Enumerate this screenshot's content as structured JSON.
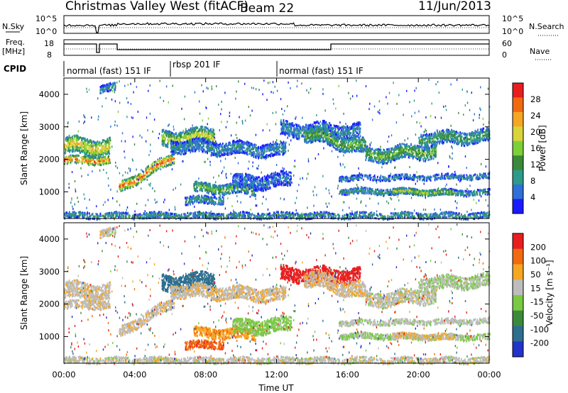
{
  "header": {
    "title": "Christmas Valley West (fitACF)",
    "beam": "Beam 22",
    "date": "11/Jun/2013"
  },
  "summary_panels": {
    "nsky": {
      "left_label": "N.Sky",
      "left_ticks": [
        "10^5",
        "10^0"
      ],
      "right_ticks": [
        "10^5",
        "10^0"
      ],
      "right_label": "N.Search"
    },
    "freq": {
      "left_label_1": "Freq.",
      "left_label_2": "[MHz]",
      "left_ticks": [
        "18",
        "8"
      ],
      "right_ticks": [
        "60",
        "0"
      ],
      "right_label": "Nave"
    },
    "cpid": {
      "label": "CPID",
      "segments": [
        {
          "name": "normal (fast) 151 IF",
          "start_hour": 0,
          "end_hour": 6
        },
        {
          "name": "rbsp 201 IF",
          "start_hour": 6,
          "end_hour": 12
        },
        {
          "name": "normal (fast) 151 IF",
          "start_hour": 12,
          "end_hour": 24
        }
      ]
    }
  },
  "chart_data": [
    {
      "type": "heatmap",
      "parameter": "Power",
      "ylabel": "Slant Range [km]",
      "xlabel": "",
      "xlim_hours": [
        0,
        24
      ],
      "ylim_km": [
        180,
        4500
      ],
      "yticks": [
        "1000",
        "2000",
        "3000",
        "4000"
      ],
      "colorbar": {
        "label": "Power [dB]",
        "ticks": [
          "28",
          "24",
          "20",
          "16",
          "12",
          "8",
          "4"
        ],
        "range": [
          0,
          30
        ],
        "colors": [
          "#1a1aff",
          "#2f6fd8",
          "#2e9a8a",
          "#3a8a3a",
          "#7dcf38",
          "#d8d43a",
          "#f5a623",
          "#f26a10",
          "#e81e1e"
        ]
      }
    },
    {
      "type": "heatmap",
      "parameter": "Velocity",
      "ylabel": "Slant Range [km]",
      "xlabel": "Time UT",
      "xlim_hours": [
        0,
        24
      ],
      "ylim_km": [
        180,
        4500
      ],
      "yticks": [
        "1000",
        "2000",
        "3000",
        "4000"
      ],
      "xticks": [
        "00:00",
        "04:00",
        "08:00",
        "12:00",
        "16:00",
        "20:00",
        "00:00"
      ],
      "colorbar": {
        "label": "Velocity [m s⁻¹]",
        "ticks": [
          "200",
          "100",
          "50",
          "15",
          "-15",
          "-50",
          "-100",
          "-200"
        ],
        "range": [
          -250,
          250
        ],
        "colors": [
          "#2233cc",
          "#2e6e8e",
          "#3b8a3b",
          "#7ac943",
          "#bdbdbd",
          "#f5a623",
          "#f26a10",
          "#e81e1e"
        ]
      }
    }
  ]
}
